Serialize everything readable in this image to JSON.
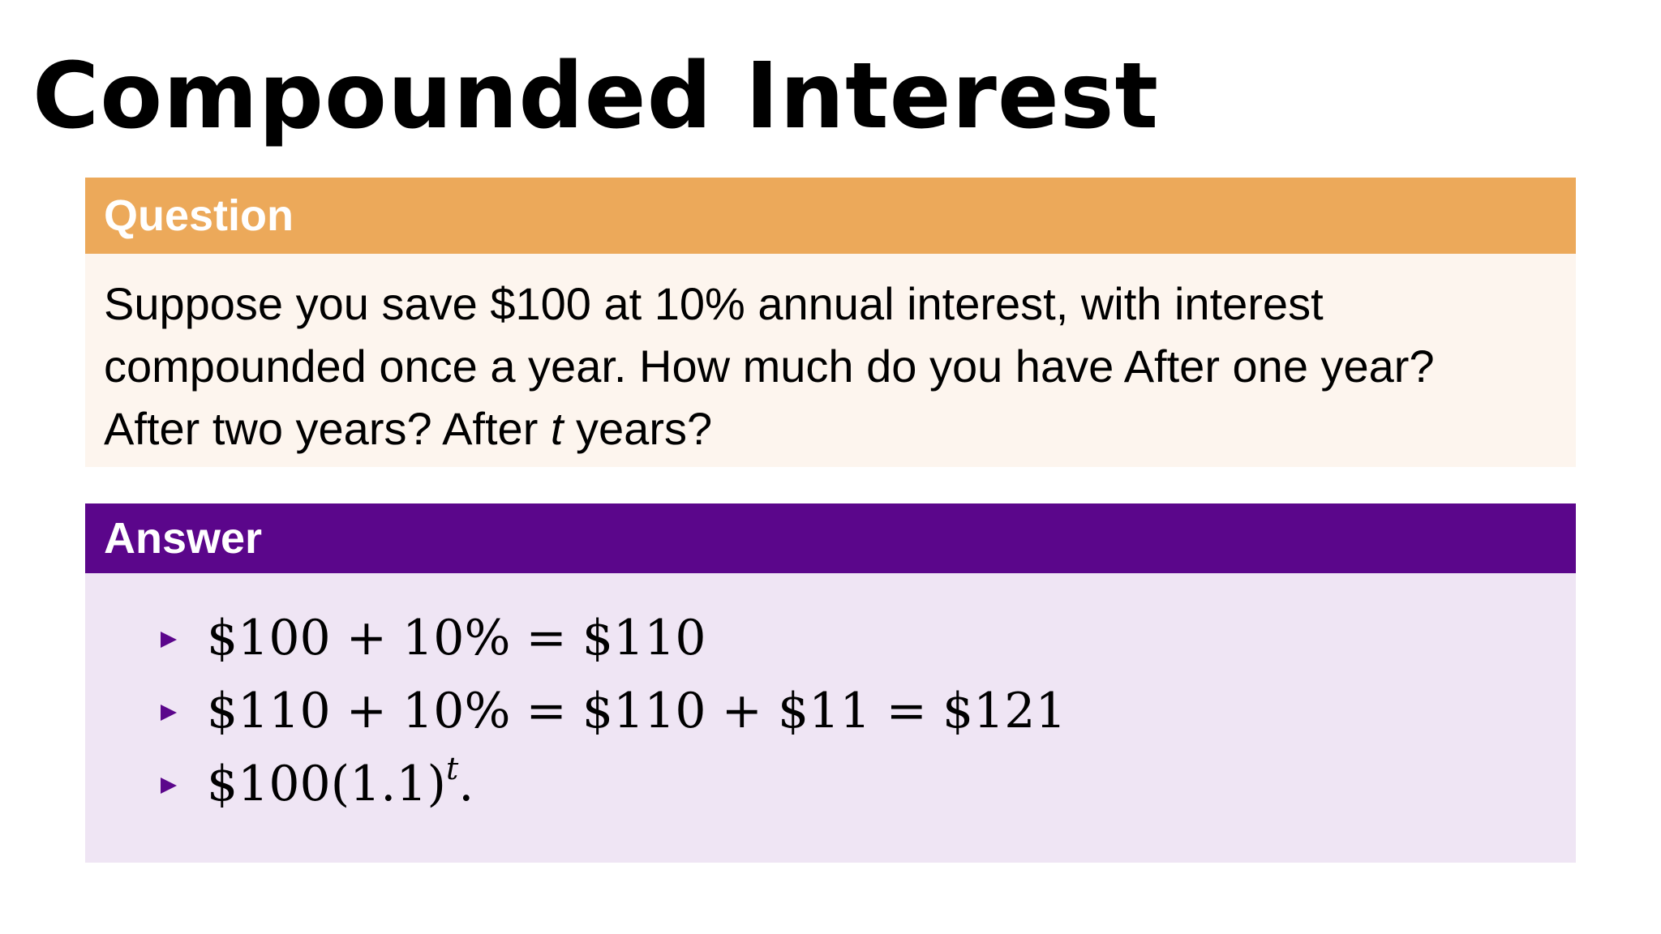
{
  "title": "Compounded Interest",
  "question": {
    "header": "Question",
    "lines": [
      "Suppose you save $100 at 10% annual interest, with interest",
      "compounded once a year.  How much do you have After one year?"
    ],
    "line3_pre": "After two years?  After ",
    "line3_var": "t",
    "line3_post": " years?"
  },
  "answer": {
    "header": "Answer",
    "items": [
      "$100 + 10% = $110",
      "$110 + 10% = $110 + $11 = $121"
    ],
    "item3_base": "$100(1.1)",
    "item3_exponent": "t",
    "item3_end": "."
  },
  "colors": {
    "question_header_bg": "#eca95a",
    "question_body_bg": "#fdf5ee",
    "answer_header_bg": "#5b068b",
    "answer_body_bg": "#efe5f4",
    "bullet": "#5b068b"
  },
  "icons": {
    "bullet": "triangle-bullet-icon"
  }
}
